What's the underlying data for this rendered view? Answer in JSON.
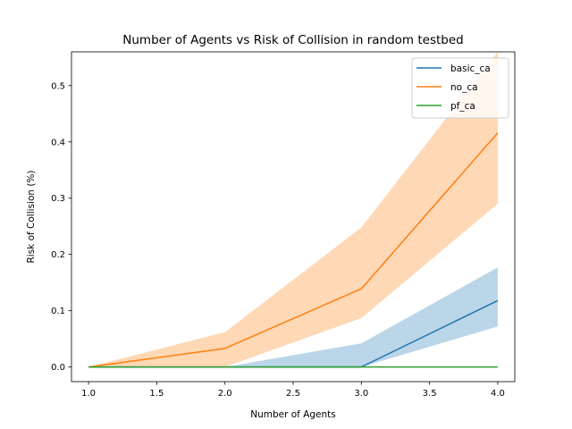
{
  "chart_data": {
    "type": "line",
    "title": "Number of Agents vs Risk of Collision in random testbed",
    "xlabel": "Number of Agents",
    "ylabel": "Risk of Collision (%)",
    "x": [
      1.0,
      2.0,
      3.0,
      4.0
    ],
    "xlim": [
      0.875,
      4.125
    ],
    "ylim": [
      -0.026,
      0.56
    ],
    "xticks": [
      1.0,
      1.5,
      2.0,
      2.5,
      3.0,
      3.5,
      4.0
    ],
    "xtick_labels": [
      "1.0",
      "1.5",
      "2.0",
      "2.5",
      "3.0",
      "3.5",
      "4.0"
    ],
    "yticks": [
      0.0,
      0.1,
      0.2,
      0.3,
      0.4,
      0.5
    ],
    "ytick_labels": [
      "0.0",
      "0.1",
      "0.2",
      "0.3",
      "0.4",
      "0.5"
    ],
    "grid": false,
    "legend_position": "top-right",
    "series": [
      {
        "name": "basic_ca",
        "color": "#1f77b4",
        "values": [
          0.0,
          0.0,
          0.0,
          0.118
        ],
        "band_lower": [
          0.0,
          0.0,
          0.0,
          0.072
        ],
        "band_upper": [
          0.0,
          0.0,
          0.042,
          0.177
        ]
      },
      {
        "name": "no_ca",
        "color": "#ff7f0e",
        "values": [
          0.0,
          0.033,
          0.139,
          0.416
        ],
        "band_lower": [
          0.0,
          0.0,
          0.087,
          0.29
        ],
        "band_upper": [
          0.0,
          0.062,
          0.248,
          0.56
        ]
      },
      {
        "name": "pf_ca",
        "color": "#2ca02c",
        "values": [
          0.0,
          0.0,
          0.0,
          0.0
        ],
        "band_lower": [
          0.0,
          0.0,
          0.0,
          0.0
        ],
        "band_upper": [
          0.0,
          0.0,
          0.0,
          0.0
        ]
      }
    ]
  }
}
